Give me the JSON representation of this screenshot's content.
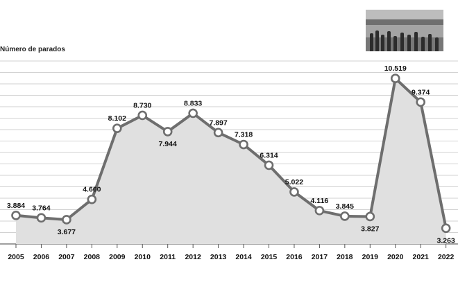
{
  "chart_data": {
    "type": "area",
    "ylabel": "Número de parados",
    "xlabel": "",
    "title": "",
    "categories": [
      "2005",
      "2006",
      "2007",
      "2008",
      "2009",
      "2010",
      "2011",
      "2012",
      "2013",
      "2014",
      "2015",
      "2016",
      "2017",
      "2018",
      "2019",
      "2020",
      "2021",
      "2022"
    ],
    "values": [
      3884,
      3764,
      3677,
      4660,
      8102,
      8730,
      7944,
      8833,
      7897,
      7318,
      6314,
      5022,
      4116,
      3845,
      3827,
      10519,
      9374,
      3263
    ],
    "data_labels": [
      "3.884",
      "3.764",
      "3.677",
      "4.660",
      "8.102",
      "8.730",
      "7.944",
      "8.833",
      "7.897",
      "7.318",
      "6.314",
      "5.022",
      "4.116",
      "3.845",
      "3.827",
      "10.519",
      "9.374",
      "3.263"
    ],
    "ylim": [
      2500,
      11500
    ],
    "grid": true,
    "line_color": "#6e6e6e",
    "fill_color": "#e0e0e0",
    "marker_fill": "#ffffff"
  },
  "photo": {
    "icon": "street-crowd-photo"
  }
}
